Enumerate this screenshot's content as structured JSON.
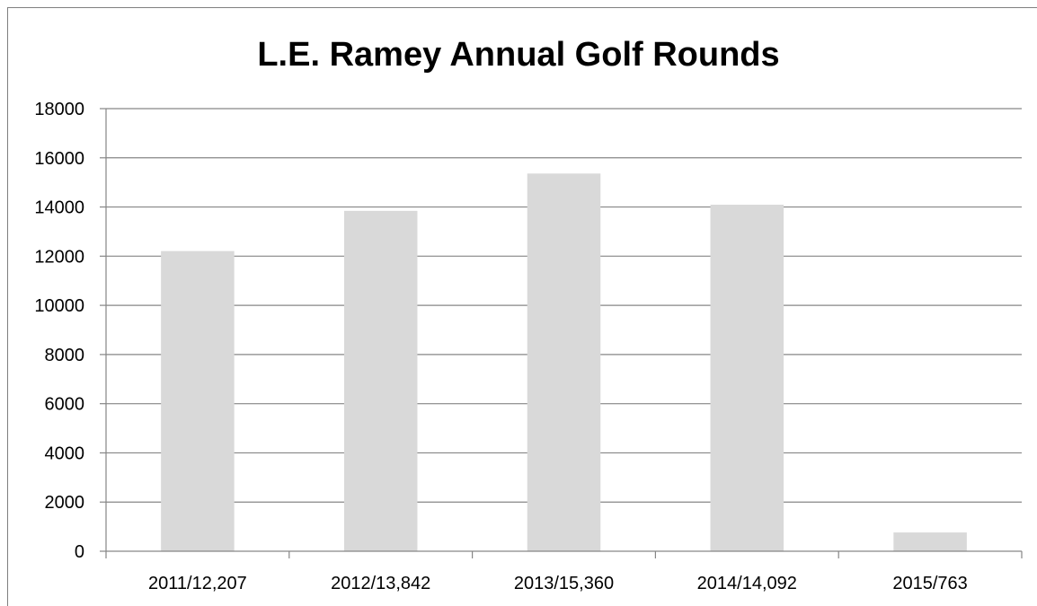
{
  "chart_data": {
    "type": "bar",
    "title": "L.E. Ramey Annual Golf Rounds",
    "xlabel": "",
    "ylabel": "",
    "categories": [
      "2011/12,207",
      "2012/13,842",
      "2013/15,360",
      "2014/14,092",
      "2015/763"
    ],
    "values": [
      12207,
      13842,
      15360,
      14092,
      763
    ],
    "ylim": [
      0,
      18000
    ],
    "yticks": [
      0,
      2000,
      4000,
      6000,
      8000,
      10000,
      12000,
      14000,
      16000,
      18000
    ],
    "grid": true,
    "legend": "none",
    "bar_color": "#d9d9d9",
    "grid_color": "#868686",
    "axis_color": "#868686"
  }
}
